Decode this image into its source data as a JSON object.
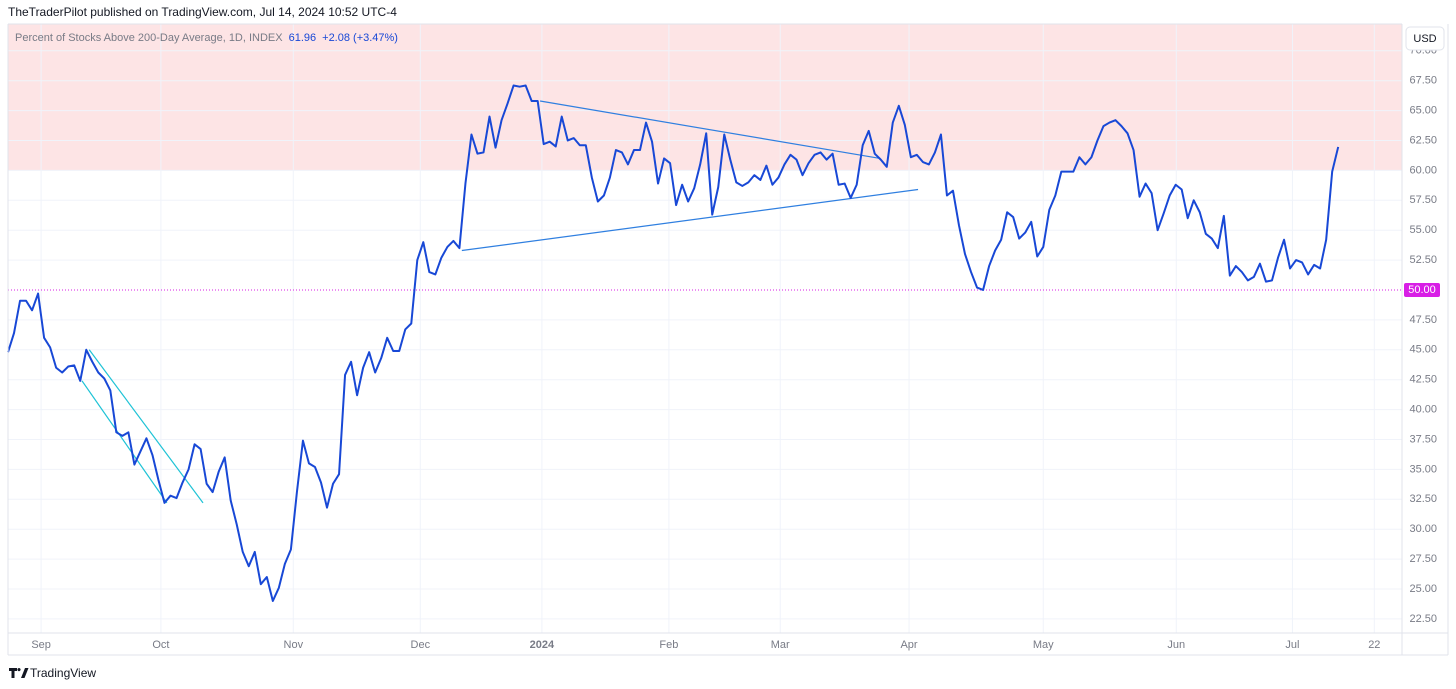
{
  "header": "TheTraderPilot published on TradingView.com, Jul 14, 2024 10:52 UTC-4",
  "footer_brand": "TradingView",
  "currency": "USD",
  "chart_data": {
    "type": "line",
    "legend_title": "Percent of Stocks Above 200-Day Average, 1D, INDEX",
    "last_value": 61.96,
    "change_text": "+2.08 (+3.47%)",
    "series": [
      {
        "name": "Percent of Stocks Above 200-Day Average",
        "color": "#1848d6",
        "values": [
          44.8,
          46.4,
          49.1,
          49.1,
          48.3,
          49.7,
          46.0,
          45.2,
          43.5,
          43.1,
          43.6,
          43.7,
          42.4,
          45.0,
          44.0,
          43.1,
          42.6,
          41.6,
          38.1,
          37.8,
          38.1,
          35.4,
          36.5,
          37.6,
          36.2,
          34.1,
          32.2,
          32.8,
          32.6,
          33.9,
          35.0,
          37.1,
          36.7,
          33.8,
          33.1,
          34.8,
          36.0,
          32.4,
          30.4,
          28.1,
          26.9,
          28.1,
          25.4,
          26.0,
          24.0,
          25.1,
          27.1,
          28.3,
          33.1,
          37.4,
          35.5,
          35.2,
          33.9,
          31.8,
          33.8,
          34.6,
          42.9,
          44.0,
          41.2,
          43.5,
          44.8,
          43.1,
          44.3,
          46.0,
          44.9,
          44.9,
          46.7,
          47.2,
          52.5,
          54.0,
          51.5,
          51.3,
          52.7,
          53.6,
          54.1,
          53.5,
          58.9,
          63.0,
          61.4,
          61.5,
          64.5,
          61.9,
          64.2,
          65.6,
          67.1,
          67.0,
          67.1,
          65.8,
          65.8,
          62.2,
          62.4,
          62.0,
          64.5,
          62.5,
          62.7,
          62.1,
          62.1,
          59.4,
          57.4,
          57.9,
          59.4,
          61.7,
          61.5,
          60.5,
          61.7,
          61.7,
          64.0,
          62.4,
          58.9,
          61.0,
          60.6,
          57.1,
          58.8,
          57.4,
          58.5,
          60.5,
          63.1,
          56.3,
          58.6,
          63.0,
          60.9,
          59.0,
          58.7,
          59.0,
          59.6,
          59.2,
          60.4,
          58.8,
          59.4,
          60.5,
          61.3,
          60.9,
          59.6,
          60.6,
          61.3,
          61.5,
          60.9,
          61.4,
          58.8,
          58.9,
          57.7,
          58.8,
          62.1,
          63.3,
          61.4,
          60.9,
          60.3,
          64.0,
          65.4,
          63.8,
          61.1,
          61.3,
          60.7,
          60.5,
          61.5,
          63.0,
          57.9,
          58.3,
          55.4,
          53.0,
          51.5,
          50.2,
          50.0,
          52.0,
          53.3,
          54.2,
          56.5,
          56.1,
          54.3,
          54.8,
          55.7,
          52.8,
          53.6,
          56.7,
          57.9,
          59.9,
          59.9,
          59.9,
          61.1,
          60.5,
          61.1,
          62.5,
          63.7,
          64.0,
          64.2,
          63.7,
          63.1,
          61.7,
          57.8,
          58.9,
          58.1,
          55.0,
          56.4,
          57.9,
          58.8,
          58.4,
          56.0,
          57.5,
          56.5,
          54.7,
          54.3,
          53.5,
          56.2,
          51.2,
          52.0,
          51.5,
          50.8,
          51.1,
          52.2,
          50.7,
          50.8,
          52.7,
          54.2,
          51.8,
          52.5,
          52.3,
          51.3,
          52.1,
          51.8,
          54.2,
          59.9,
          61.96
        ]
      }
    ],
    "xlim": [
      0,
      231.6
    ],
    "xticks": [
      {
        "value": 5.5,
        "label": "Sep"
      },
      {
        "value": 25.4,
        "label": "Oct"
      },
      {
        "value": 47.4,
        "label": "Nov"
      },
      {
        "value": 68.5,
        "label": "Dec"
      },
      {
        "value": 88.7,
        "label": "2024",
        "bold": true
      },
      {
        "value": 109.8,
        "label": "Feb"
      },
      {
        "value": 128.3,
        "label": "Mar"
      },
      {
        "value": 149.7,
        "label": "Apr"
      },
      {
        "value": 172.0,
        "label": "May"
      },
      {
        "value": 194.1,
        "label": "Jun"
      },
      {
        "value": 213.4,
        "label": "Jul"
      },
      {
        "value": 227.0,
        "label": "22"
      }
    ],
    "ylim": [
      21.32,
      72.24
    ],
    "yticks": [
      {
        "value": 22.5,
        "label": "22.50"
      },
      {
        "value": 25,
        "label": "25.00"
      },
      {
        "value": 27.5,
        "label": "27.50"
      },
      {
        "value": 30,
        "label": "30.00"
      },
      {
        "value": 32.5,
        "label": "32.50"
      },
      {
        "value": 35,
        "label": "35.00"
      },
      {
        "value": 37.5,
        "label": "37.50"
      },
      {
        "value": 40,
        "label": "40.00"
      },
      {
        "value": 42.5,
        "label": "42.50"
      },
      {
        "value": 45,
        "label": "45.00"
      },
      {
        "value": 47.5,
        "label": "47.50"
      },
      {
        "value": 52.5,
        "label": "52.50"
      },
      {
        "value": 55,
        "label": "55.00"
      },
      {
        "value": 57.5,
        "label": "57.50"
      },
      {
        "value": 60,
        "label": "60.00"
      },
      {
        "value": 62.5,
        "label": "62.50"
      },
      {
        "value": 65,
        "label": "65.00"
      },
      {
        "value": 67.5,
        "label": "67.50"
      },
      {
        "value": 70,
        "label": "70.00"
      }
    ],
    "grid": true,
    "shaded_zone": {
      "from": 60,
      "color": "#fde4e5"
    },
    "price_line": {
      "value": 50,
      "label": "50.00",
      "color": "#d81ee6"
    },
    "trend_lines": [
      {
        "x": [
          12.3,
          26.4
        ],
        "y": [
          42.4,
          32.2
        ],
        "color": "#1fc3d6"
      },
      {
        "x": [
          13.5,
          32.4
        ],
        "y": [
          45.0,
          32.2
        ],
        "color": "#1fc3d6"
      },
      {
        "x": [
          88.4,
          144.9
        ],
        "y": [
          65.8,
          61.0
        ],
        "color": "#2f7fe0"
      },
      {
        "x": [
          75.4,
          151.2
        ],
        "y": [
          53.3,
          58.4
        ],
        "color": "#2f7fe0"
      }
    ]
  }
}
